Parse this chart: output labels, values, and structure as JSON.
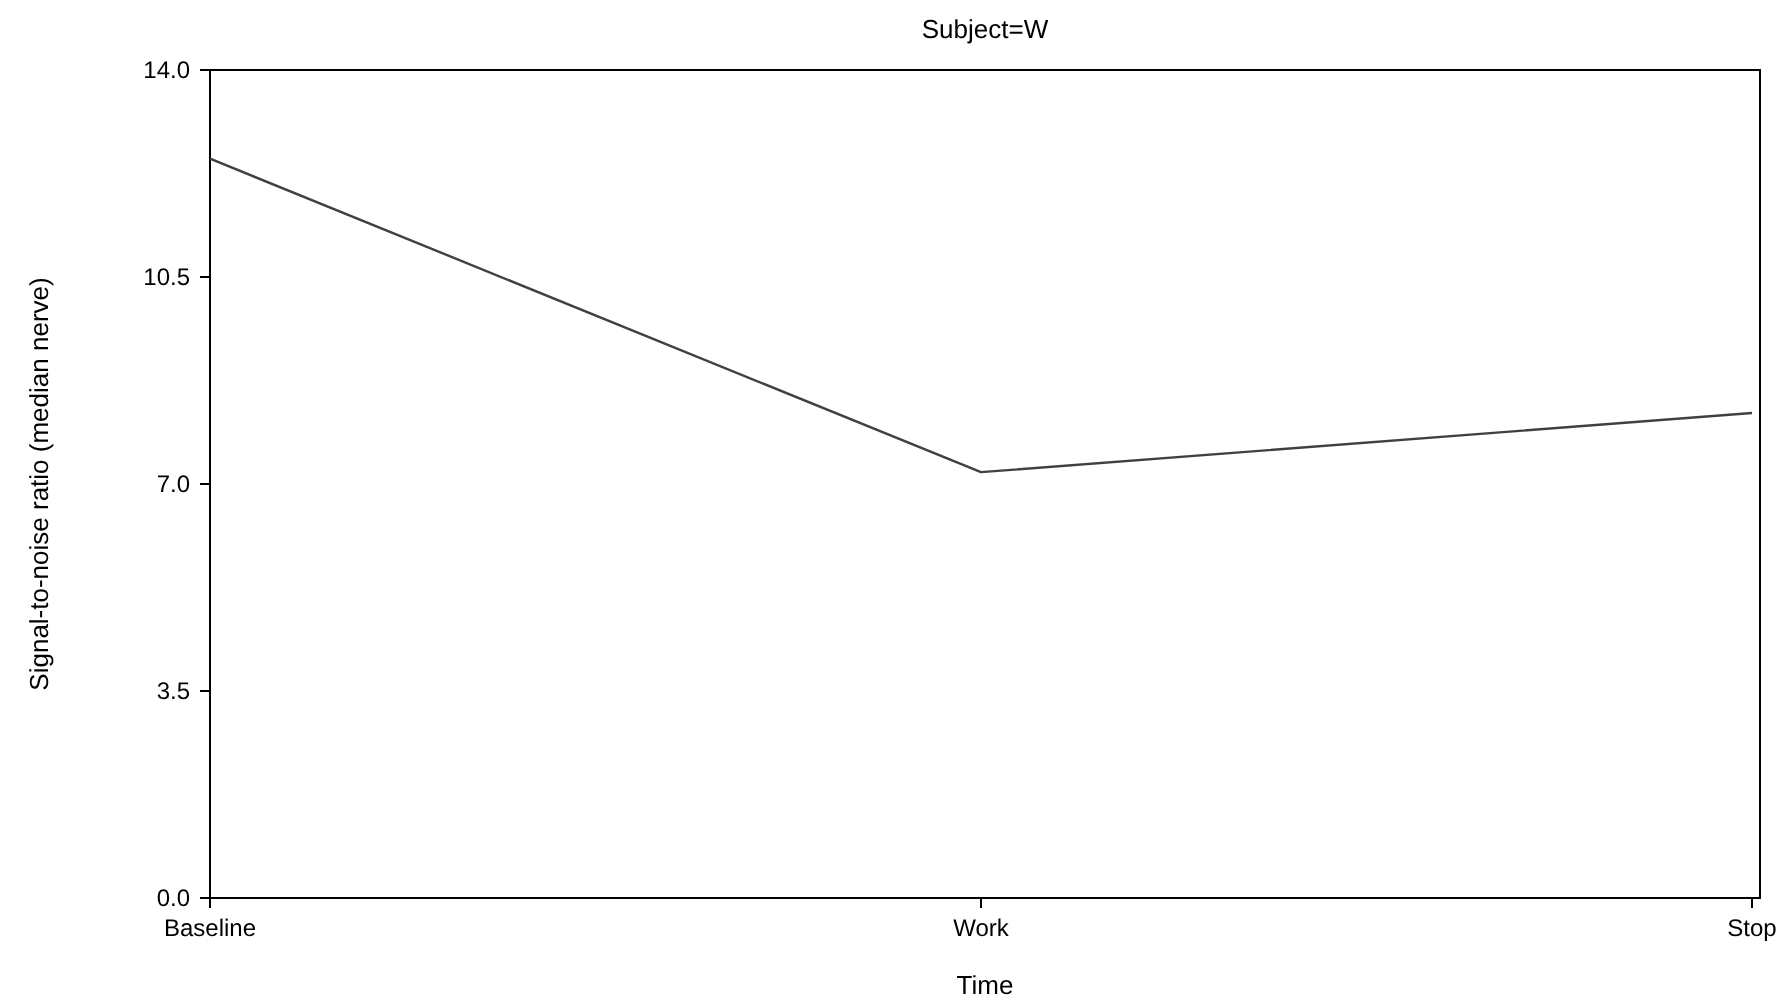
{
  "chart_data": {
    "type": "line",
    "title": "Subject=W",
    "xlabel": "Time",
    "ylabel": "Signal-to-noise ratio (median nerve)",
    "categories": [
      "Baseline",
      "Work",
      "Stop"
    ],
    "series": [
      {
        "color": "#404040",
        "values": [
          12.5,
          7.2,
          8.2
        ]
      }
    ],
    "ylim": [
      0,
      14
    ],
    "yticks": [
      {
        "value": 0,
        "label": "0.0"
      },
      {
        "value": 3.5,
        "label": "3.5"
      },
      {
        "value": 7,
        "label": "7.0"
      },
      {
        "value": 10.5,
        "label": "10.5"
      },
      {
        "value": 14,
        "label": "14.0"
      }
    ],
    "grid": false,
    "marker": "none",
    "line_style": "solid"
  }
}
